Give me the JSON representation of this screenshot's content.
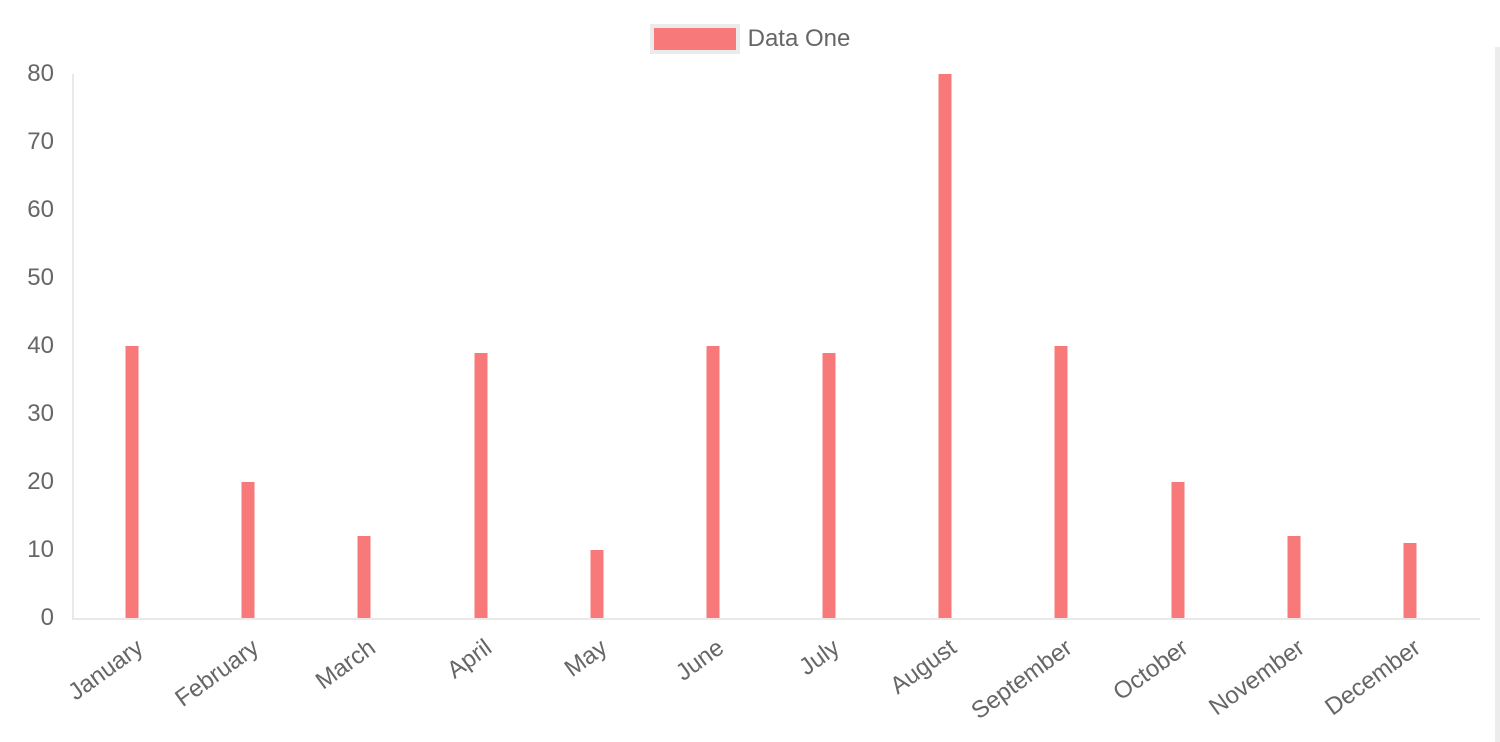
{
  "chart_data": {
    "type": "bar",
    "categories": [
      "January",
      "February",
      "March",
      "April",
      "May",
      "June",
      "July",
      "August",
      "September",
      "October",
      "November",
      "December"
    ],
    "series": [
      {
        "name": "Data One",
        "color": "#f87979",
        "values": [
          40,
          20,
          12,
          39,
          10,
          40,
          39,
          80,
          40,
          20,
          12,
          11
        ]
      }
    ],
    "title": "",
    "xlabel": "",
    "ylabel": "",
    "ylim": [
      0,
      80
    ],
    "yticks": [
      0,
      10,
      20,
      30,
      40,
      50,
      60,
      70,
      80
    ],
    "legend_position": "top-center",
    "grid": "off",
    "x_label_rotation_deg": -36
  },
  "legend": {
    "label": "Data One"
  },
  "colors": {
    "bar": "#f87979",
    "legend_border": "#ebebeb",
    "axis_line": "#e9e9e9",
    "tick_text": "#666666",
    "right_strip": "#ececec",
    "background": "#ffffff"
  }
}
